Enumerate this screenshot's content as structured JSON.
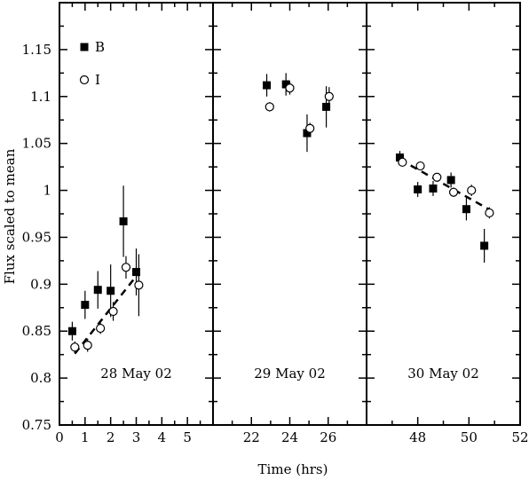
{
  "chart_data": {
    "type": "scatter",
    "ylabel": "Flux scaled to mean",
    "xlabel": "Time (hrs)",
    "ylim": [
      0.75,
      1.2
    ],
    "yticks": [
      0.75,
      0.8,
      0.85,
      0.9,
      0.95,
      1,
      1.05,
      1.1,
      1.15
    ],
    "ytick_labels": [
      "0.75",
      "0.8",
      "0.85",
      "0.9",
      "0.95",
      "1",
      "1.05",
      "1.1",
      "1.15"
    ],
    "legend": [
      {
        "name": "B",
        "marker": "filled-square"
      },
      {
        "name": "I",
        "marker": "open-circle"
      }
    ],
    "panels": [
      {
        "label": "28 May 02",
        "xlim": [
          0,
          6
        ],
        "xticks": [
          0,
          1,
          2,
          3,
          4,
          5
        ],
        "xtick_labels": [
          "0",
          "1",
          "2",
          "3",
          "4",
          "5"
        ],
        "series": [
          {
            "name": "B",
            "points": [
              {
                "x": 0.5,
                "y": 0.85,
                "err": 0.01
              },
              {
                "x": 1.0,
                "y": 0.878,
                "err": 0.015
              },
              {
                "x": 1.5,
                "y": 0.894,
                "err": 0.02
              },
              {
                "x": 2.0,
                "y": 0.893,
                "err": 0.028
              },
              {
                "x": 2.5,
                "y": 0.967,
                "err": 0.038
              },
              {
                "x": 3.0,
                "y": 0.913,
                "err": 0.025
              }
            ]
          },
          {
            "name": "I",
            "points": [
              {
                "x": 0.6,
                "y": 0.833,
                "err": 0.006
              },
              {
                "x": 1.1,
                "y": 0.835,
                "err": 0.007
              },
              {
                "x": 1.6,
                "y": 0.853,
                "err": 0.006
              },
              {
                "x": 2.1,
                "y": 0.871,
                "err": 0.01
              },
              {
                "x": 2.6,
                "y": 0.918,
                "err": 0.012
              },
              {
                "x": 3.1,
                "y": 0.899,
                "err": 0.033
              }
            ]
          }
        ],
        "fit": [
          {
            "x": 0.6,
            "y": 0.826
          },
          {
            "x": 3.1,
            "y": 0.912
          }
        ]
      },
      {
        "label": "29 May 02",
        "xlim": [
          20,
          28
        ],
        "xticks": [
          22,
          24,
          26
        ],
        "xtick_labels": [
          "22",
          "24",
          "26"
        ],
        "series": [
          {
            "name": "B",
            "points": [
              {
                "x": 22.8,
                "y": 1.112,
                "err": 0.012
              },
              {
                "x": 23.8,
                "y": 1.113,
                "err": 0.012
              },
              {
                "x": 24.9,
                "y": 1.061,
                "err": 0.02
              },
              {
                "x": 25.9,
                "y": 1.089,
                "err": 0.022
              }
            ]
          },
          {
            "name": "I",
            "points": [
              {
                "x": 22.95,
                "y": 1.089,
                "err": 0.005
              },
              {
                "x": 24.0,
                "y": 1.109,
                "err": 0.007
              },
              {
                "x": 25.05,
                "y": 1.066,
                "err": 0.006
              },
              {
                "x": 26.05,
                "y": 1.1,
                "err": 0.01
              }
            ]
          }
        ]
      },
      {
        "label": "30 May 02",
        "xlim": [
          46,
          52
        ],
        "xticks": [
          48,
          50,
          52
        ],
        "xtick_labels": [
          "48",
          "50",
          "52"
        ],
        "series": [
          {
            "name": "B",
            "points": [
              {
                "x": 47.3,
                "y": 1.035,
                "err": 0.007
              },
              {
                "x": 48.0,
                "y": 1.001,
                "err": 0.008
              },
              {
                "x": 48.6,
                "y": 1.002,
                "err": 0.008
              },
              {
                "x": 49.3,
                "y": 1.011,
                "err": 0.008
              },
              {
                "x": 49.9,
                "y": 0.98,
                "err": 0.012
              },
              {
                "x": 50.6,
                "y": 0.941,
                "err": 0.018
              }
            ]
          },
          {
            "name": "I",
            "points": [
              {
                "x": 47.4,
                "y": 1.03,
                "err": 0.004
              },
              {
                "x": 48.1,
                "y": 1.026,
                "err": 0.004
              },
              {
                "x": 48.75,
                "y": 1.014,
                "err": 0.004
              },
              {
                "x": 49.4,
                "y": 0.998,
                "err": 0.005
              },
              {
                "x": 50.1,
                "y": 1.0,
                "err": 0.006
              },
              {
                "x": 50.8,
                "y": 0.976,
                "err": 0.006
              }
            ]
          }
        ],
        "fit": [
          {
            "x": 47.3,
            "y": 1.033
          },
          {
            "x": 50.9,
            "y": 0.978
          }
        ]
      }
    ]
  }
}
